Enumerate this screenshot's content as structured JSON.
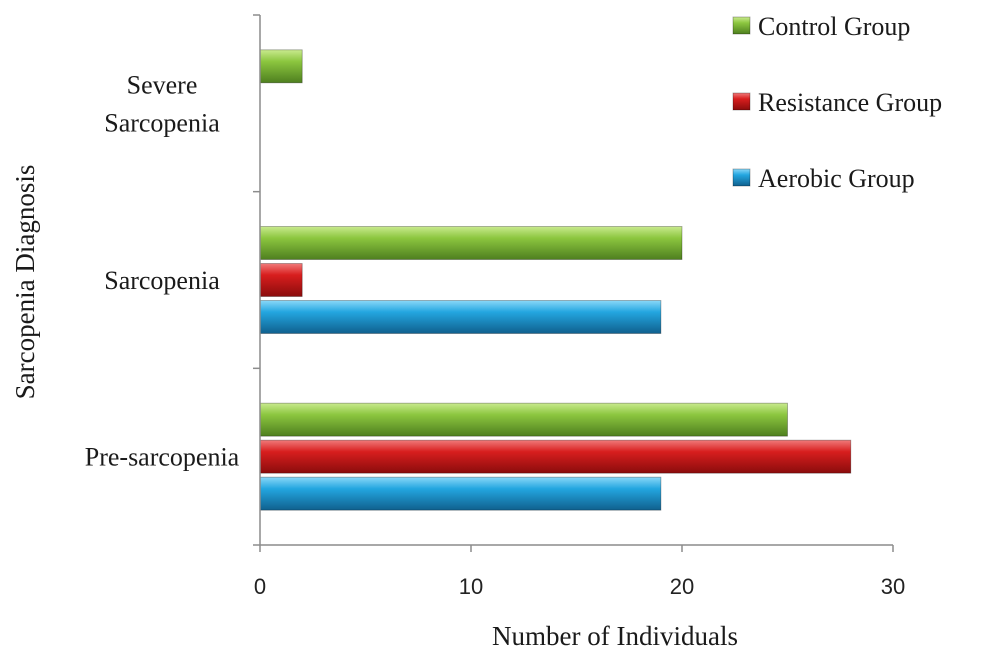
{
  "chart_data": {
    "type": "bar",
    "orientation": "horizontal",
    "title": "",
    "xlabel": "Number of Individuals",
    "ylabel": "Sarcopenia Diagnosis",
    "categories": [
      "Pre-sarcopenia",
      "Sarcopenia",
      "Severe Sarcopenia"
    ],
    "category_lines": [
      [
        "Pre-sarcopenia"
      ],
      [
        "Sarcopenia"
      ],
      [
        "Severe",
        "Sarcopenia"
      ]
    ],
    "series": [
      {
        "name": "Aerobic Group",
        "values": [
          19,
          19,
          0
        ],
        "color": "#1e9ad6"
      },
      {
        "name": "Resistance Group",
        "values": [
          28,
          2,
          0
        ],
        "color": "#d01c1c"
      },
      {
        "name": "Control Group",
        "values": [
          25,
          20,
          2
        ],
        "color": "#7cb342"
      }
    ],
    "legend_order": [
      "Control Group",
      "Resistance Group",
      "Aerobic Group"
    ],
    "xlim": [
      0,
      30
    ],
    "xticks": [
      0,
      10,
      20,
      30
    ],
    "grid": false,
    "legend_position": "top-right"
  }
}
